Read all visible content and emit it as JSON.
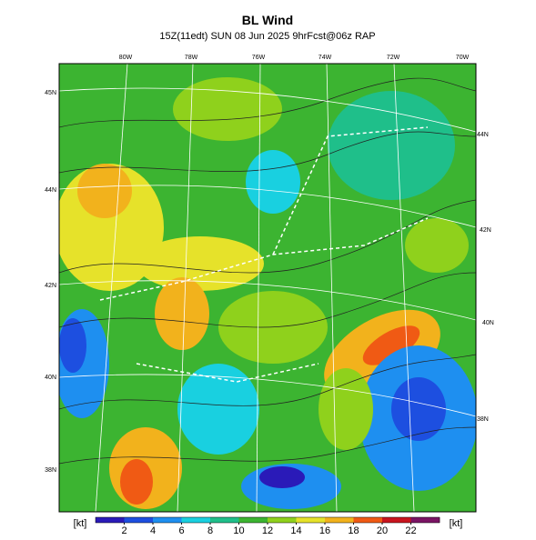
{
  "header": {
    "title": "BL Wind",
    "subtitle": "15Z(11edt) SUN 08 Jun 2025 9hrFcst@06z RAP"
  },
  "map": {
    "top_labels": [
      "80W",
      "78W",
      "76W",
      "74W",
      "72W",
      "70W"
    ],
    "left_labels": [
      "45N",
      "44N",
      "42N",
      "40N",
      "38N"
    ],
    "right_labels": [
      "44N",
      "42N",
      "40N",
      "38N"
    ]
  },
  "colorbar": {
    "unit": "[kt]",
    "lim": [
      0,
      24
    ],
    "ticks": [
      2,
      4,
      6,
      8,
      10,
      12,
      14,
      16,
      18,
      20,
      22
    ],
    "colors": [
      "#2a1ab8",
      "#1d4fe0",
      "#1e8ff0",
      "#19d0e0",
      "#1fbf8a",
      "#3cb431",
      "#8fd11c",
      "#e6e22a",
      "#f2b21c",
      "#f05a14",
      "#c8141e",
      "#7a1464"
    ]
  }
}
